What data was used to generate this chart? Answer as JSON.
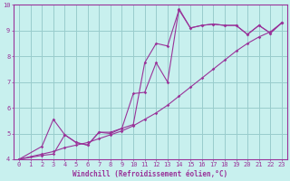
{
  "xlabel": "Windchill (Refroidissement éolien,°C)",
  "bg_color": "#c8f0ee",
  "line_color": "#993399",
  "grid_color": "#99cccc",
  "xlim": [
    -0.5,
    23.5
  ],
  "ylim": [
    4,
    10
  ],
  "xticks": [
    0,
    1,
    2,
    3,
    4,
    5,
    6,
    7,
    8,
    9,
    10,
    11,
    12,
    13,
    14,
    15,
    16,
    17,
    18,
    19,
    20,
    21,
    22,
    23
  ],
  "yticks": [
    4,
    5,
    6,
    7,
    8,
    9,
    10
  ],
  "series1_x": [
    0,
    1,
    2,
    3,
    4,
    5,
    6,
    7,
    8,
    9,
    10,
    11,
    12,
    13,
    14,
    15,
    16,
    17,
    18,
    19,
    20,
    21,
    22,
    23
  ],
  "series1_y": [
    4.0,
    4.1,
    4.2,
    4.3,
    4.45,
    4.55,
    4.65,
    4.8,
    4.95,
    5.1,
    5.3,
    5.55,
    5.8,
    6.1,
    6.45,
    6.8,
    7.15,
    7.5,
    7.85,
    8.2,
    8.5,
    8.75,
    8.95,
    9.3
  ],
  "series2_x": [
    0,
    2,
    3,
    4,
    5,
    6,
    7,
    8,
    9,
    10,
    11,
    12,
    13,
    14,
    15,
    16,
    17,
    18,
    19,
    20,
    21,
    22,
    23
  ],
  "series2_y": [
    4.0,
    4.5,
    5.55,
    4.95,
    4.65,
    4.55,
    5.05,
    5.05,
    5.2,
    5.35,
    7.75,
    8.5,
    8.4,
    9.8,
    9.1,
    9.2,
    9.25,
    9.2,
    9.2,
    8.85,
    9.2,
    8.9,
    9.3
  ],
  "series3_x": [
    0,
    2,
    3,
    4,
    5,
    6,
    7,
    8,
    9,
    10,
    11,
    12,
    13,
    14,
    15,
    16,
    17,
    18,
    19,
    20,
    21,
    22,
    23
  ],
  "series3_y": [
    4.0,
    4.15,
    4.2,
    4.95,
    4.65,
    4.55,
    5.05,
    5.0,
    5.2,
    6.55,
    6.6,
    7.75,
    7.0,
    9.85,
    9.1,
    9.2,
    9.25,
    9.2,
    9.2,
    8.85,
    9.2,
    8.9,
    9.3
  ],
  "xlabel_fontsize": 5.5,
  "tick_fontsize": 5.0
}
